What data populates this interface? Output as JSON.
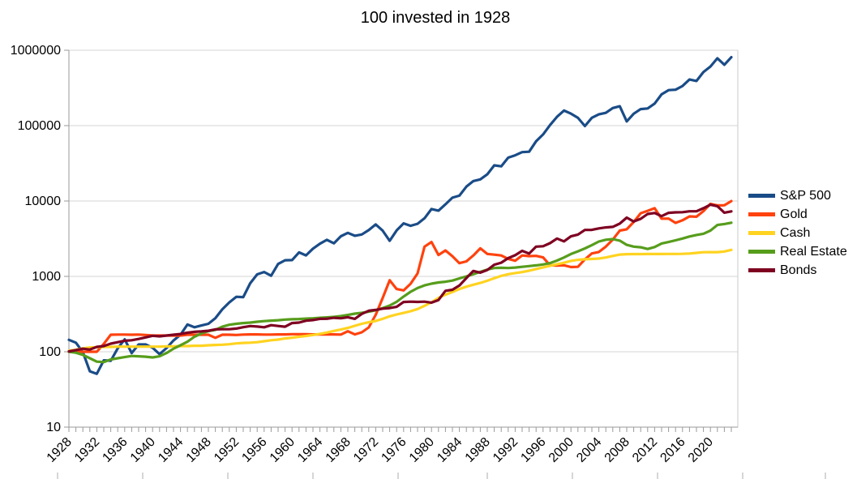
{
  "chart_data": {
    "type": "line",
    "title": "100 invested in 1928",
    "y_scale": "log",
    "ylim": [
      10,
      1000000
    ],
    "y_ticks": [
      10,
      100,
      1000,
      10000,
      100000,
      1000000
    ],
    "grid": "horizontal",
    "legend_position": "right",
    "x_tick_labels": [
      1928,
      1932,
      1936,
      1940,
      1944,
      1948,
      1952,
      1956,
      1960,
      1964,
      1968,
      1972,
      1976,
      1980,
      1984,
      1988,
      1992,
      1996,
      2000,
      2004,
      2008,
      2012,
      2016,
      2020
    ],
    "years": [
      1928,
      1929,
      1930,
      1931,
      1932,
      1933,
      1934,
      1935,
      1936,
      1937,
      1938,
      1939,
      1940,
      1941,
      1942,
      1943,
      1944,
      1945,
      1946,
      1947,
      1948,
      1949,
      1950,
      1951,
      1952,
      1953,
      1954,
      1955,
      1956,
      1957,
      1958,
      1959,
      1960,
      1961,
      1962,
      1963,
      1964,
      1965,
      1966,
      1967,
      1968,
      1969,
      1970,
      1971,
      1972,
      1973,
      1974,
      1975,
      1976,
      1977,
      1978,
      1979,
      1980,
      1981,
      1982,
      1983,
      1984,
      1985,
      1986,
      1987,
      1988,
      1989,
      1990,
      1991,
      1992,
      1993,
      1994,
      1995,
      1996,
      1997,
      1998,
      1999,
      2000,
      2001,
      2002,
      2003,
      2004,
      2005,
      2006,
      2007,
      2008,
      2009,
      2010,
      2011,
      2012,
      2013,
      2014,
      2015,
      2016,
      2017,
      2018,
      2019,
      2020,
      2021,
      2022,
      2023
    ],
    "series": [
      {
        "name": "S&P 500",
        "slug": "sp-500",
        "color": "#1a4c87",
        "values": [
          144,
          132,
          99,
          55,
          51,
          77,
          76,
          111,
          146,
          96,
          125,
          125,
          113,
          93,
          112,
          141,
          168,
          230,
          211,
          223,
          235,
          279,
          366,
          452,
          536,
          530,
          811,
          1065,
          1144,
          1021,
          1461,
          1636,
          1644,
          2082,
          1900,
          2332,
          2715,
          3053,
          2746,
          3403,
          3780,
          3458,
          3595,
          4107,
          4885,
          4038,
          2967,
          4070,
          5043,
          4682,
          4989,
          5906,
          7824,
          7444,
          9038,
          11076,
          11772,
          15514,
          18408,
          19377,
          22591,
          29745,
          28822,
          37598,
          40452,
          44523,
          45112,
          62058,
          76305,
          101760,
          130851,
          158407,
          144097,
          126923,
          98866,
          127208,
          141041,
          147948,
          171319,
          180704,
          113879,
          144034,
          165729,
          169222,
          196286,
          259894,
          295519,
          299600,
          335453,
          408881,
          390951,
          514119,
          608661,
          783123,
          641368,
          808781
        ]
      },
      {
        "name": "Gold",
        "slug": "gold",
        "color": "#ff420e",
        "values": [
          100,
          100,
          100,
          100,
          100,
          127,
          168,
          169,
          169,
          168,
          169,
          167,
          164,
          164,
          164,
          164,
          164,
          168,
          168,
          168,
          168,
          153,
          168,
          168,
          167,
          169,
          170,
          170,
          169,
          169,
          170,
          170,
          171,
          171,
          171,
          170,
          170,
          170,
          170,
          169,
          187,
          170,
          181,
          210,
          309,
          517,
          889,
          679,
          651,
          798,
          1094,
          2478,
          2855,
          1924,
          2211,
          1851,
          1496,
          1582,
          1892,
          2355,
          1985,
          1941,
          1892,
          1709,
          1612,
          1896,
          1855,
          1873,
          1787,
          1405,
          1393,
          1405,
          1328,
          1338,
          1681,
          2015,
          2108,
          2483,
          3077,
          4049,
          4210,
          5264,
          6874,
          7410,
          8023,
          5830,
          5837,
          5131,
          5546,
          6249,
          6191,
          7332,
          9163,
          8741,
          8772,
          9982
        ]
      },
      {
        "name": "Cash",
        "slug": "cash",
        "color": "#ffd320",
        "values": [
          103,
          106,
          111,
          114,
          115,
          116,
          116,
          117,
          117,
          117,
          117,
          117,
          117,
          117,
          118,
          118,
          119,
          119,
          120,
          120,
          122,
          123,
          124,
          126,
          129,
          131,
          132,
          134,
          138,
          142,
          145,
          150,
          154,
          158,
          162,
          167,
          173,
          180,
          189,
          197,
          207,
          221,
          235,
          246,
          256,
          273,
          295,
          312,
          327,
          345,
          369,
          407,
          453,
          517,
          572,
          621,
          680,
          731,
          774,
          819,
          874,
          945,
          1016,
          1070,
          1107,
          1140,
          1189,
          1254,
          1317,
          1383,
          1449,
          1517,
          1605,
          1659,
          1686,
          1703,
          1726,
          1781,
          1865,
          1946,
          1973,
          1976,
          1978,
          1979,
          1981,
          1982,
          1983,
          1984,
          1990,
          2009,
          2048,
          2090,
          2097,
          2098,
          2141,
          2249
        ]
      },
      {
        "name": "Real Estate",
        "slug": "real-estate",
        "color": "#579d1c",
        "values": [
          100,
          97,
          91,
          82,
          74,
          73,
          79,
          82,
          85,
          88,
          87,
          86,
          84,
          87,
          96,
          110,
          122,
          136,
          158,
          175,
          188,
          195,
          215,
          228,
          235,
          240,
          244,
          250,
          255,
          259,
          262,
          267,
          270,
          272,
          275,
          278,
          282,
          286,
          290,
          297,
          308,
          320,
          328,
          340,
          355,
          380,
          410,
          460,
          540,
          625,
          700,
          760,
          800,
          830,
          850,
          880,
          940,
          1000,
          1070,
          1150,
          1230,
          1290,
          1300,
          1290,
          1310,
          1340,
          1370,
          1400,
          1440,
          1500,
          1620,
          1780,
          1980,
          2150,
          2350,
          2600,
          2900,
          3060,
          3120,
          2980,
          2620,
          2480,
          2430,
          2310,
          2450,
          2730,
          2860,
          3010,
          3180,
          3380,
          3540,
          3680,
          4050,
          4800,
          4950,
          5150
        ]
      },
      {
        "name": "Bonds",
        "slug": "bonds",
        "color": "#7e0021",
        "values": [
          101,
          105,
          110,
          107,
          116,
          119,
          128,
          134,
          140,
          142,
          148,
          155,
          163,
          160,
          164,
          168,
          172,
          179,
          184,
          186,
          190,
          198,
          199,
          199,
          203,
          212,
          219,
          216,
          211,
          225,
          220,
          215,
          240,
          244,
          258,
          263,
          273,
          274,
          282,
          278,
          287,
          273,
          318,
          350,
          359,
          373,
          380,
          394,
          457,
          462,
          459,
          462,
          448,
          485,
          644,
          665,
          756,
          950,
          1181,
          1122,
          1215,
          1430,
          1519,
          1747,
          1910,
          2182,
          2006,
          2478,
          2513,
          2763,
          3175,
          2913,
          3398,
          3587,
          4130,
          4145,
          4331,
          4456,
          4543,
          5007,
          6013,
          5345,
          5797,
          6727,
          6927,
          6297,
          6973,
          7063,
          7112,
          7311,
          7309,
          8014,
          8921,
          8527,
          7007,
          7279
        ]
      }
    ]
  }
}
